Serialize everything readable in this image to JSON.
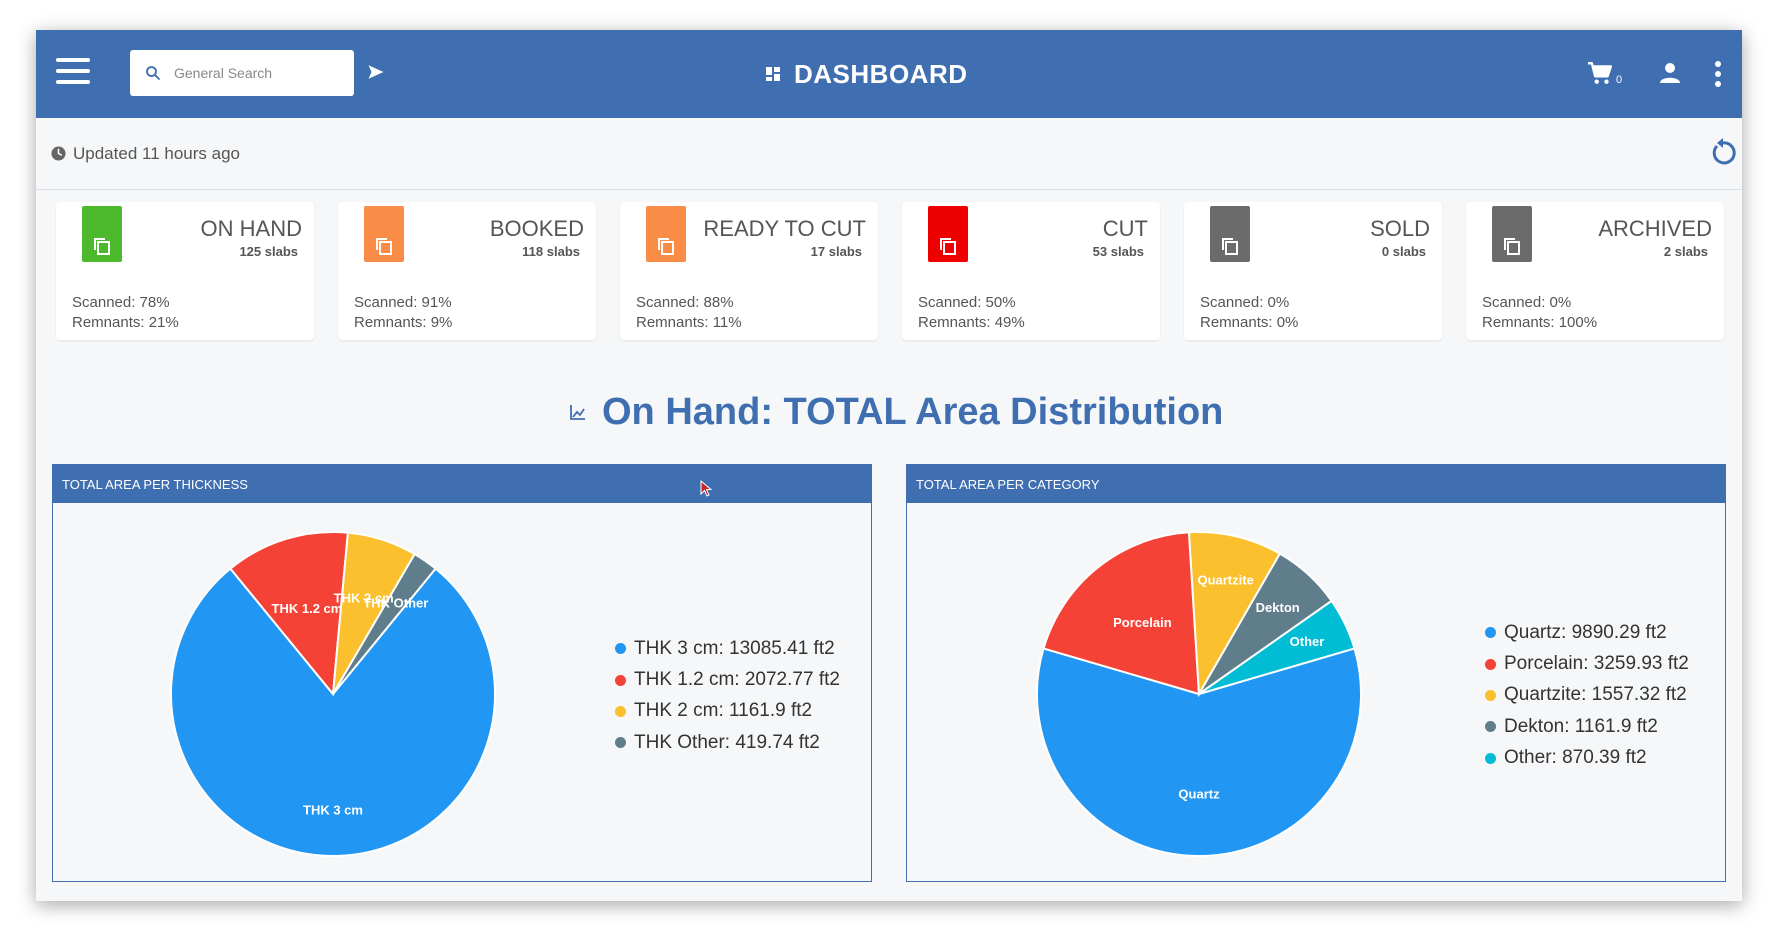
{
  "header": {
    "title": "DASHBOARD",
    "search_placeholder": "General Search",
    "cart_count": "0"
  },
  "status": {
    "updated": "Updated 11 hours ago"
  },
  "cards": [
    {
      "title": "ON HAND",
      "count": "125 slabs",
      "scanned": "Scanned: 78%",
      "remnants": "Remnants: 21%",
      "color": "#4cb82c"
    },
    {
      "title": "BOOKED",
      "count": "118 slabs",
      "scanned": "Scanned: 91%",
      "remnants": "Remnants: 9%",
      "color": "#f98c47"
    },
    {
      "title": "READY TO CUT",
      "count": "17 slabs",
      "scanned": "Scanned: 88%",
      "remnants": "Remnants: 11%",
      "color": "#f98c47"
    },
    {
      "title": "CUT",
      "count": "53 slabs",
      "scanned": "Scanned: 50%",
      "remnants": "Remnants: 49%",
      "color": "#ee0000"
    },
    {
      "title": "SOLD",
      "count": "0 slabs",
      "scanned": "Scanned: 0%",
      "remnants": "Remnants: 0%",
      "color": "#6b6b6b"
    },
    {
      "title": "ARCHIVED",
      "count": "2 slabs",
      "scanned": "Scanned: 0%",
      "remnants": "Remnants: 100%",
      "color": "#6b6b6b"
    }
  ],
  "section": {
    "title": "On Hand: TOTAL Area Distribution"
  },
  "chart_data": [
    {
      "type": "pie",
      "title": "TOTAL AREA PER THICKNESS",
      "categories": [
        "THK 3 cm",
        "THK 1.2 cm",
        "THK 2 cm",
        "THK Other"
      ],
      "values": [
        13085.41,
        2072.77,
        1161.9,
        419.74
      ],
      "legend": [
        "THK 3 cm: 13085.41 ft2",
        "THK 1.2 cm: 2072.77 ft2",
        "THK 2 cm: 1161.9 ft2",
        "THK Other: 419.74 ft2"
      ],
      "colors": [
        "#2196f3",
        "#f44336",
        "#fbc02d",
        "#607d8b"
      ],
      "legend_position": "right"
    },
    {
      "type": "pie",
      "title": "TOTAL AREA PER CATEGORY",
      "categories": [
        "Quartz",
        "Porcelain",
        "Quartzite",
        "Dekton",
        "Other"
      ],
      "values": [
        9890.29,
        3259.93,
        1557.32,
        1161.9,
        870.39
      ],
      "legend": [
        "Quartz: 9890.29 ft2",
        "Porcelain: 3259.93 ft2",
        "Quartzite: 1557.32 ft2",
        "Dekton: 1161.9 ft2",
        "Other: 870.39 ft2"
      ],
      "colors": [
        "#2196f3",
        "#f44336",
        "#fbc02d",
        "#607d8b",
        "#00bcd4"
      ],
      "legend_position": "right"
    }
  ]
}
